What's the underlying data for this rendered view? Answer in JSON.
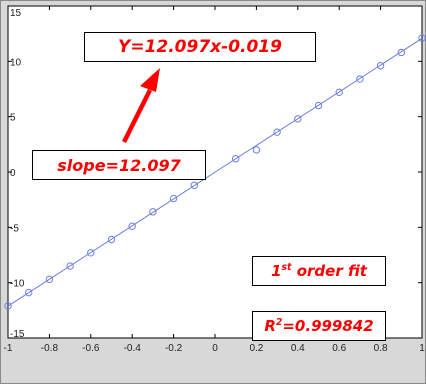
{
  "chart_data": {
    "type": "scatter",
    "title": "",
    "xlabel": "",
    "ylabel": "",
    "xlim": [
      -1,
      1
    ],
    "ylim": [
      -15,
      15
    ],
    "grid": false,
    "x_ticks": [
      -1,
      -0.8,
      -0.6,
      -0.4,
      -0.2,
      0,
      0.2,
      0.4,
      0.6,
      0.8,
      1
    ],
    "x_tick_labels": [
      "-1",
      "-0.8",
      "-0.6",
      "-0.4",
      "-0.2",
      "0",
      "0.2",
      "0.4",
      "0.6",
      "0.8",
      "1"
    ],
    "y_ticks": [
      -15,
      -10,
      -5,
      0,
      5,
      10,
      15
    ],
    "y_tick_labels": [
      "-15",
      "-10",
      "-5",
      "0",
      "5",
      "10",
      "15"
    ],
    "series": [
      {
        "marker": "circle",
        "color": "#6b7fe0",
        "x": [
          -1,
          -0.9,
          -0.8,
          -0.7,
          -0.6,
          -0.5,
          -0.4,
          -0.3,
          -0.2,
          -0.1,
          0.1,
          0.2,
          0.3,
          0.4,
          0.5,
          0.6,
          0.7,
          0.8,
          0.9,
          1.0
        ],
        "y": [
          -12.1,
          -10.9,
          -9.7,
          -8.5,
          -7.3,
          -6.1,
          -4.9,
          -3.6,
          -2.4,
          -1.2,
          1.2,
          2.0,
          3.6,
          4.8,
          6.0,
          7.2,
          8.4,
          9.6,
          10.8,
          12.1
        ]
      },
      {
        "line": "fit",
        "color": "#6b7fe0",
        "slope": 12.097,
        "intercept": -0.019,
        "x_range": [
          -1,
          1
        ]
      }
    ]
  },
  "annotations": {
    "equation": "Y=12.097x-0.019",
    "slope": "slope=12.097",
    "fit_order_base": "1",
    "fit_order_sup": "st",
    "fit_order_rest": " order fit",
    "r2_base": "R",
    "r2_sup": "2",
    "r2_rest": "=0.999842",
    "text_color": "#ff0000",
    "arrow_color": "#ff0000"
  }
}
